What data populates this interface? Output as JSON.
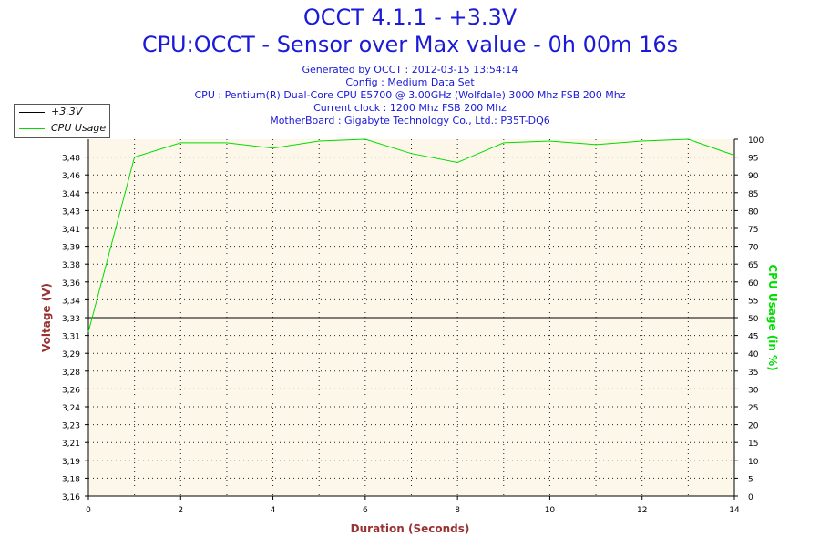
{
  "header": {
    "title": "OCCT 4.1.1 - +3.3V",
    "subtitle": "CPU:OCCT - Sensor over Max value - 0h 00m 16s",
    "info": [
      "Generated by OCCT : 2012-03-15 13:54:14",
      "Config : Medium Data Set",
      "CPU : Pentium(R) Dual-Core CPU E5700 @ 3.00GHz (Wolfdale) 3000 Mhz FSB 200 Mhz",
      "Current clock : 1200 Mhz FSB 200 Mhz",
      "MotherBoard : Gigabyte Technology Co., Ltd.: P35T-DQ6"
    ]
  },
  "colors": {
    "title": "#1a1ad8",
    "plot_bg": "#fdf7e9",
    "voltage_line": "#000000",
    "cpu_line": "#00dd00",
    "left_axis_label": "#993333",
    "right_axis_label": "#00dd00",
    "x_axis_label": "#993333"
  },
  "chart_data": {
    "type": "line",
    "xlabel": "Duration (Seconds)",
    "ylabel_left": "Voltage (V)",
    "ylabel_right": "CPU Usage (in %)",
    "x_ticks": [
      "0",
      "2",
      "4",
      "6",
      "8",
      "10",
      "12",
      "14"
    ],
    "x_range": [
      0,
      14
    ],
    "y_left_range": [
      3.16,
      3.5
    ],
    "y_left_ticks": [
      "3,16",
      "3,18",
      "3,19",
      "3,21",
      "3,23",
      "3,24",
      "3,26",
      "3,28",
      "3,29",
      "3,31",
      "3,33",
      "3,34",
      "3,36",
      "3,38",
      "3,39",
      "3,41",
      "3,43",
      "3,44",
      "3,46",
      "3,48"
    ],
    "y_right_range": [
      0,
      100
    ],
    "y_right_ticks": [
      "0",
      "5",
      "10",
      "15",
      "20",
      "25",
      "30",
      "35",
      "40",
      "45",
      "50",
      "55",
      "60",
      "65",
      "70",
      "75",
      "80",
      "85",
      "90",
      "95",
      "100"
    ],
    "grid": true,
    "legend_position": "top-left",
    "series": [
      {
        "name": "+3.3V",
        "axis": "left",
        "color": "#000000",
        "x": [
          0,
          14
        ],
        "y": [
          3.33,
          3.33
        ]
      },
      {
        "name": "CPU Usage",
        "axis": "right",
        "color": "#00dd00",
        "x": [
          0,
          1,
          2,
          3,
          4,
          5,
          6,
          7,
          8,
          9,
          10,
          11,
          12,
          13,
          14
        ],
        "y": [
          46,
          95,
          99,
          99,
          97.5,
          99.5,
          100,
          96,
          93.5,
          99,
          99.5,
          98.5,
          99.5,
          100,
          95.5
        ]
      }
    ]
  }
}
